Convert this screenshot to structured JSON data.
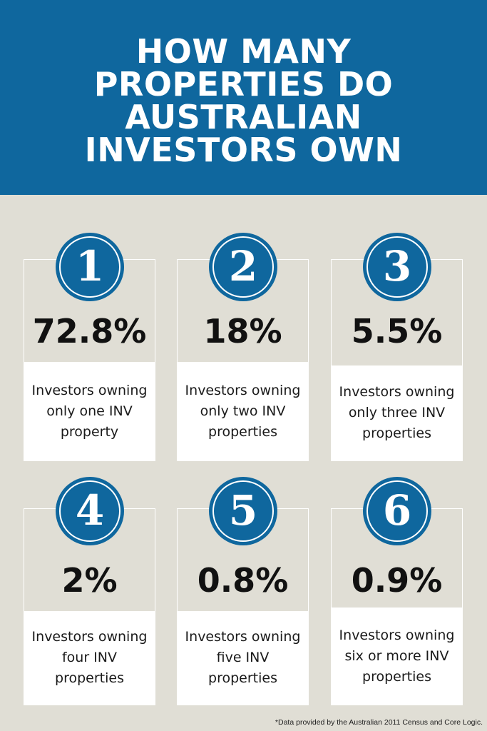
{
  "header": {
    "title_lines": [
      "HOW MANY",
      "PROPERTIES DO",
      "AUSTRALIAN",
      "INVESTORS OWN"
    ]
  },
  "cards": [
    {
      "number": "1",
      "percent": "72.8%",
      "description": "Investors owning only one INV property"
    },
    {
      "number": "2",
      "percent": "18%",
      "description": "Investors owning only two INV properties"
    },
    {
      "number": "3",
      "percent": "5.5%",
      "description": "Investors owning only three INV properties"
    },
    {
      "number": "4",
      "percent": "2%",
      "description": "Investors owning four INV properties"
    },
    {
      "number": "5",
      "percent": "0.8%",
      "description": "Investors owning five INV properties"
    },
    {
      "number": "6",
      "percent": "0.9%",
      "description": "Investors owning six or more INV properties"
    }
  ],
  "footnote": "*Data provided by the Australian 2011 Census and Core Logic.",
  "colors": {
    "brand_blue": "#0f679e",
    "background": "#e0ded5",
    "card_white": "#ffffff"
  }
}
